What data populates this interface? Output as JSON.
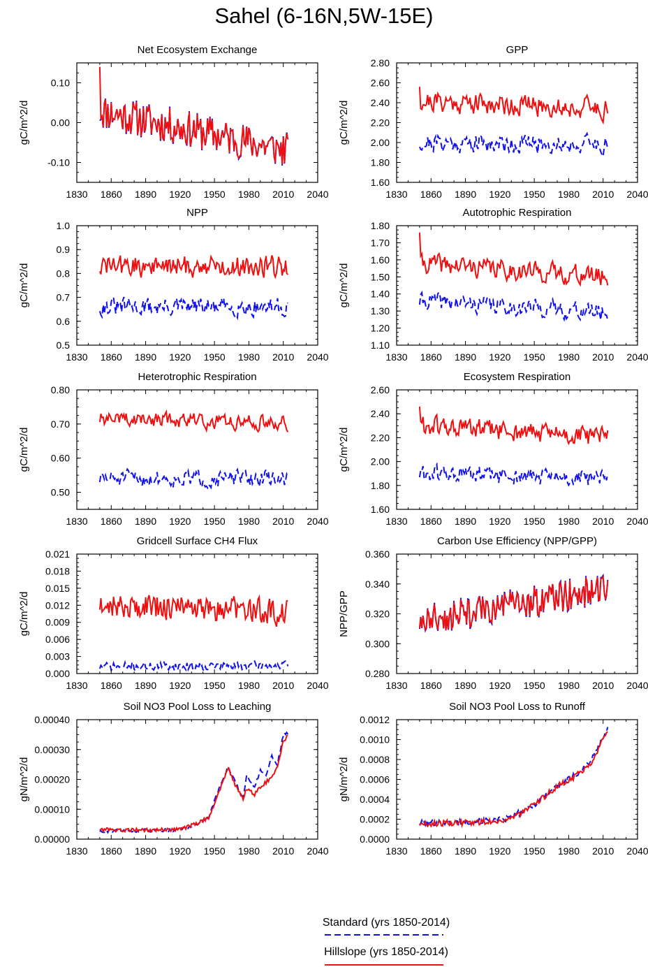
{
  "figure": {
    "title": "Sahel (6-16N,5W-15E)",
    "legend": [
      {
        "label": "Standard (yrs 1850-2014)",
        "color": "#1010ee",
        "style": "dashed"
      },
      {
        "label": "Hillslope (yrs 1850-2014)",
        "color": "#ee1010",
        "style": "solid"
      }
    ]
  },
  "chart_data": [
    {
      "type": "line",
      "title": "Net Ecosystem Exchange",
      "xlabel": "",
      "ylabel": "gC/m^2/d",
      "xlim": [
        1830,
        2040
      ],
      "xticks": [
        1830,
        1860,
        1890,
        1920,
        1950,
        1980,
        2010,
        2040
      ],
      "ylim": [
        -0.15,
        0.15
      ],
      "yticks": [
        -0.1,
        0.0,
        0.1
      ],
      "tick_decimals": 2,
      "series": [
        {
          "name": "Standard (yrs 1850-2014)",
          "x_start": 1850,
          "x_end": 2014,
          "base": 0.03,
          "trend": -0.1,
          "amp": 0.048,
          "seed": 11,
          "smooth": 0.0,
          "color": "#1010ee",
          "style": "dashed"
        },
        {
          "name": "Hillslope (yrs 1850-2014)",
          "x_start": 1850,
          "x_end": 2014,
          "base": 0.03,
          "trend": -0.1,
          "amp": 0.045,
          "seed": 11,
          "smooth": 0.0,
          "spike": 0.14,
          "color": "#ee1010",
          "style": "solid"
        }
      ]
    },
    {
      "type": "line",
      "title": "GPP",
      "xlabel": "",
      "ylabel": "gC/m^2/d",
      "xlim": [
        1830,
        2040
      ],
      "xticks": [
        1830,
        1860,
        1890,
        1920,
        1950,
        1980,
        2010,
        2040
      ],
      "ylim": [
        1.6,
        2.8
      ],
      "yticks": [
        1.6,
        1.8,
        2.0,
        2.2,
        2.4,
        2.6,
        2.8
      ],
      "tick_decimals": 2,
      "series": [
        {
          "name": "Standard (yrs 1850-2014)",
          "x_start": 1850,
          "x_end": 2014,
          "base": 2.0,
          "trend": -0.02,
          "amp": 0.13,
          "seed": 21,
          "smooth": 0.35,
          "color": "#1010ee",
          "style": "dashed"
        },
        {
          "name": "Hillslope (yrs 1850-2014)",
          "x_start": 1850,
          "x_end": 2014,
          "base": 2.42,
          "trend": -0.08,
          "amp": 0.15,
          "seed": 21,
          "smooth": 0.35,
          "spike": 2.56,
          "color": "#ee1010",
          "style": "solid"
        }
      ]
    },
    {
      "type": "line",
      "title": "NPP",
      "xlabel": "",
      "ylabel": "gC/m^2/d",
      "xlim": [
        1830,
        2040
      ],
      "xticks": [
        1830,
        1860,
        1890,
        1920,
        1950,
        1980,
        2010,
        2040
      ],
      "ylim": [
        0.5,
        1.0
      ],
      "yticks": [
        0.5,
        0.6,
        0.7,
        0.8,
        0.9,
        1.0
      ],
      "tick_decimals": 1,
      "series": [
        {
          "name": "Standard (yrs 1850-2014)",
          "x_start": 1850,
          "x_end": 2014,
          "base": 0.66,
          "trend": 0.0,
          "amp": 0.05,
          "seed": 31,
          "smooth": 0.3,
          "color": "#1010ee",
          "style": "dashed"
        },
        {
          "name": "Hillslope (yrs 1850-2014)",
          "x_start": 1850,
          "x_end": 2014,
          "base": 0.83,
          "trend": 0.0,
          "amp": 0.06,
          "seed": 32,
          "smooth": 0.3,
          "color": "#ee1010",
          "style": "solid"
        }
      ]
    },
    {
      "type": "line",
      "title": "Autotrophic Respiration",
      "xlabel": "",
      "ylabel": "gC/m^2/d",
      "xlim": [
        1830,
        2040
      ],
      "xticks": [
        1830,
        1860,
        1890,
        1920,
        1950,
        1980,
        2010,
        2040
      ],
      "ylim": [
        1.1,
        1.8
      ],
      "yticks": [
        1.1,
        1.2,
        1.3,
        1.4,
        1.5,
        1.6,
        1.7,
        1.8
      ],
      "tick_decimals": 2,
      "series": [
        {
          "name": "Standard (yrs 1850-2014)",
          "x_start": 1850,
          "x_end": 2014,
          "base": 1.36,
          "trend": -0.07,
          "amp": 0.07,
          "seed": 41,
          "smooth": 0.35,
          "color": "#1010ee",
          "style": "dashed"
        },
        {
          "name": "Hillslope (yrs 1850-2014)",
          "x_start": 1850,
          "x_end": 2014,
          "base": 1.58,
          "trend": -0.08,
          "amp": 0.08,
          "seed": 41,
          "smooth": 0.35,
          "spike": 1.76,
          "color": "#ee1010",
          "style": "solid"
        }
      ]
    },
    {
      "type": "line",
      "title": "Heterotrophic Respiration",
      "xlabel": "",
      "ylabel": "gC/m^2/d",
      "xlim": [
        1830,
        2040
      ],
      "xticks": [
        1830,
        1860,
        1890,
        1920,
        1950,
        1980,
        2010,
        2040
      ],
      "ylim": [
        0.45,
        0.8
      ],
      "yticks": [
        0.5,
        0.6,
        0.7,
        0.8
      ],
      "tick_decimals": 2,
      "series": [
        {
          "name": "Standard (yrs 1850-2014)",
          "x_start": 1850,
          "x_end": 2014,
          "base": 0.54,
          "trend": 0.0,
          "amp": 0.035,
          "seed": 51,
          "smooth": 0.4,
          "color": "#1010ee",
          "style": "dashed"
        },
        {
          "name": "Hillslope (yrs 1850-2014)",
          "x_start": 1850,
          "x_end": 2014,
          "base": 0.715,
          "trend": -0.01,
          "amp": 0.035,
          "seed": 52,
          "smooth": 0.45,
          "color": "#ee1010",
          "style": "solid"
        }
      ]
    },
    {
      "type": "line",
      "title": "Ecosystem Respiration",
      "xlabel": "",
      "ylabel": "gC/m^2/d",
      "xlim": [
        1830,
        2040
      ],
      "xticks": [
        1830,
        1860,
        1890,
        1920,
        1950,
        1980,
        2010,
        2040
      ],
      "ylim": [
        1.6,
        2.6
      ],
      "yticks": [
        1.6,
        1.8,
        2.0,
        2.2,
        2.4,
        2.6
      ],
      "tick_decimals": 2,
      "series": [
        {
          "name": "Standard (yrs 1850-2014)",
          "x_start": 1850,
          "x_end": 2014,
          "base": 1.9,
          "trend": -0.05,
          "amp": 0.1,
          "seed": 61,
          "smooth": 0.35,
          "color": "#1010ee",
          "style": "dashed"
        },
        {
          "name": "Hillslope (yrs 1850-2014)",
          "x_start": 1850,
          "x_end": 2014,
          "base": 2.3,
          "trend": -0.1,
          "amp": 0.12,
          "seed": 61,
          "smooth": 0.35,
          "spike": 2.46,
          "color": "#ee1010",
          "style": "solid"
        }
      ]
    },
    {
      "type": "line",
      "title": "Gridcell Surface CH4 Flux",
      "xlabel": "",
      "ylabel": "gC/m^2/d",
      "xlim": [
        1830,
        2040
      ],
      "xticks": [
        1830,
        1860,
        1890,
        1920,
        1950,
        1980,
        2010,
        2040
      ],
      "ylim": [
        0.0,
        0.021
      ],
      "yticks": [
        0.0,
        0.003,
        0.006,
        0.009,
        0.012,
        0.015,
        0.018,
        0.021
      ],
      "tick_decimals": 3,
      "series": [
        {
          "name": "Standard (yrs 1850-2014)",
          "x_start": 1850,
          "x_end": 2014,
          "base": 0.0012,
          "trend": 0.0002,
          "amp": 0.0009,
          "seed": 71,
          "smooth": 0.2,
          "floor": 0.0,
          "color": "#1010ee",
          "style": "dashed"
        },
        {
          "name": "Hillslope (yrs 1850-2014)",
          "x_start": 1850,
          "x_end": 2014,
          "base": 0.0122,
          "trend": -0.0015,
          "amp": 0.0028,
          "seed": 72,
          "smooth": 0.25,
          "color": "#ee1010",
          "style": "solid"
        }
      ]
    },
    {
      "type": "line",
      "title": "Carbon Use Efficiency (NPP/GPP)",
      "xlabel": "",
      "ylabel": "NPP/GPP",
      "xlim": [
        1830,
        2040
      ],
      "xticks": [
        1830,
        1860,
        1890,
        1920,
        1950,
        1980,
        2010,
        2040
      ],
      "ylim": [
        0.28,
        0.36
      ],
      "yticks": [
        0.28,
        0.3,
        0.32,
        0.34,
        0.36
      ],
      "tick_decimals": 3,
      "series": [
        {
          "name": "Standard (yrs 1850-2014)",
          "x_start": 1850,
          "x_end": 2014,
          "base": 0.315,
          "trend": 0.022,
          "amp": 0.011,
          "seed": 81,
          "smooth": 0.0,
          "color": "#1010ee",
          "style": "dashed"
        },
        {
          "name": "Hillslope (yrs 1850-2014)",
          "x_start": 1850,
          "x_end": 2014,
          "base": 0.315,
          "trend": 0.022,
          "amp": 0.01,
          "seed": 81,
          "smooth": 0.0,
          "color": "#ee1010",
          "style": "solid"
        }
      ]
    },
    {
      "type": "line",
      "title": "Soil NO3 Pool Loss to Leaching",
      "xlabel": "",
      "ylabel": "gN/m^2/d",
      "xlim": [
        1830,
        2040
      ],
      "xticks": [
        1830,
        1860,
        1890,
        1920,
        1950,
        1980,
        2010,
        2040
      ],
      "ylim": [
        0.0,
        0.0004
      ],
      "yticks": [
        0.0,
        0.0001,
        0.0002,
        0.0003,
        0.0004
      ],
      "tick_decimals": 5,
      "series": [
        {
          "name": "Standard (yrs 1850-2014)",
          "x": [
            1850,
            1870,
            1900,
            1920,
            1935,
            1945,
            1955,
            1962,
            1968,
            1975,
            1978,
            1985,
            1990,
            1995,
            2000,
            2005,
            2010,
            2014
          ],
          "y": [
            2.8e-05,
            2.8e-05,
            3e-05,
            3.2e-05,
            5e-05,
            7.5e-05,
            0.00018,
            0.000245,
            0.00019,
            0.00014,
            0.00021,
            0.000175,
            0.00023,
            0.000215,
            0.00028,
            0.00025,
            0.00035,
            0.000355
          ],
          "amp": 6e-06,
          "seed": 91,
          "color": "#1010ee",
          "style": "dashed"
        },
        {
          "name": "Hillslope (yrs 1850-2014)",
          "x": [
            1850,
            1870,
            1900,
            1920,
            1935,
            1945,
            1955,
            1962,
            1968,
            1975,
            1978,
            1985,
            1990,
            1995,
            2000,
            2005,
            2010,
            2014
          ],
          "y": [
            3.2e-05,
            3e-05,
            3.1e-05,
            3.3e-05,
            5.2e-05,
            7.2e-05,
            0.00017,
            0.00024,
            0.00018,
            0.000135,
            0.00017,
            0.00015,
            0.000175,
            0.00019,
            0.00021,
            0.00024,
            0.00033,
            0.000345
          ],
          "amp": 6e-06,
          "seed": 92,
          "color": "#ee1010",
          "style": "solid"
        }
      ]
    },
    {
      "type": "line",
      "title": "Soil NO3 Pool Loss to Runoff",
      "xlabel": "",
      "ylabel": "gN/m^2/d",
      "xlim": [
        1830,
        2040
      ],
      "xticks": [
        1830,
        1860,
        1890,
        1920,
        1950,
        1980,
        2010,
        2040
      ],
      "ylim": [
        0.0,
        0.0012
      ],
      "yticks": [
        0.0,
        0.0002,
        0.0004,
        0.0006,
        0.0008,
        0.001,
        0.0012
      ],
      "tick_decimals": 4,
      "series": [
        {
          "name": "Standard (yrs 1850-2014)",
          "x": [
            1850,
            1870,
            1900,
            1925,
            1940,
            1950,
            1960,
            1970,
            1980,
            1990,
            2000,
            2008,
            2014
          ],
          "y": [
            0.00016,
            0.00017,
            0.00018,
            0.0002,
            0.00028,
            0.00035,
            0.00045,
            0.00054,
            0.0006,
            0.00068,
            0.0008,
            0.00098,
            0.00112
          ],
          "amp": 3e-05,
          "seed": 101,
          "color": "#1010ee",
          "style": "dashed"
        },
        {
          "name": "Hillslope (yrs 1850-2014)",
          "x": [
            1850,
            1870,
            1900,
            1925,
            1940,
            1950,
            1960,
            1970,
            1980,
            1990,
            2000,
            2008,
            2014
          ],
          "y": [
            0.00015,
            0.00016,
            0.00017,
            0.00019,
            0.00027,
            0.00034,
            0.00044,
            0.00053,
            0.00059,
            0.00067,
            0.00078,
            0.00096,
            0.0011
          ],
          "amp": 3e-05,
          "seed": 102,
          "color": "#ee1010",
          "style": "solid"
        }
      ]
    }
  ]
}
